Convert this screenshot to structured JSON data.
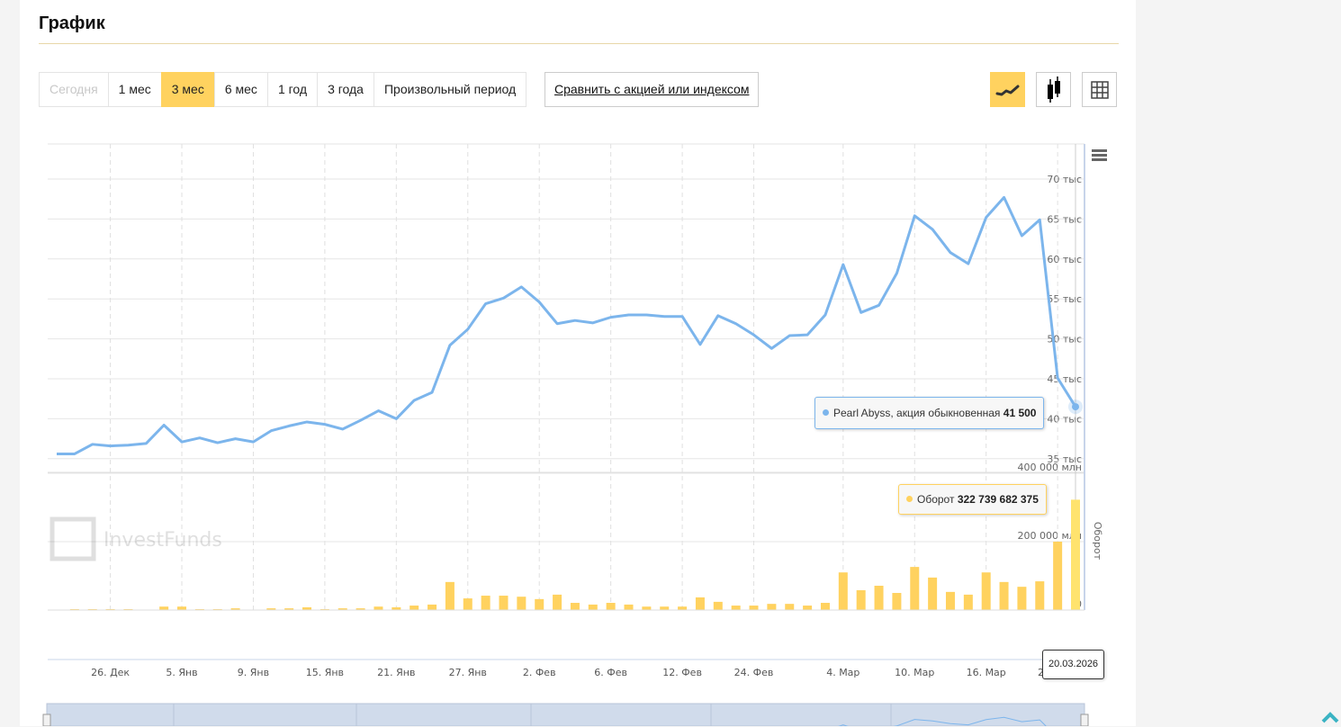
{
  "title": "График",
  "periods": [
    {
      "label": "Сегодня",
      "state": "disabled"
    },
    {
      "label": "1 мес",
      "state": ""
    },
    {
      "label": "3 мес",
      "state": "active"
    },
    {
      "label": "6 мес",
      "state": ""
    },
    {
      "label": "1 год",
      "state": ""
    },
    {
      "label": "3 года",
      "state": ""
    },
    {
      "label": "Произвольный период",
      "state": ""
    }
  ],
  "compare_label": "Сравнить с акцией или индексом",
  "view_buttons": [
    {
      "icon": "line-chart-icon",
      "active": true
    },
    {
      "icon": "candlestick-icon",
      "active": false
    },
    {
      "icon": "table-icon",
      "active": false
    }
  ],
  "colors": {
    "accent": "#ffd25f",
    "price_line": "#7cb5ec",
    "volume_bar": "#ffd25f",
    "navigator": "#d0dbeb"
  },
  "watermark": "InvestFunds",
  "tooltips": {
    "price": {
      "series": "Pearl Abyss, акция обыкновенная",
      "value": "41 500"
    },
    "volume": {
      "series": "Оборот",
      "value": "322 739 682 375"
    },
    "date": "20.03.2026"
  },
  "chart_data": {
    "type": "line",
    "price_axis": {
      "ticks": [
        "35 тыс",
        "40 тыс",
        "45 тыс",
        "50 тыс",
        "55 тыс",
        "60 тыс",
        "65 тыс",
        "70 тыс"
      ],
      "tick_values": [
        35000,
        40000,
        45000,
        50000,
        55000,
        60000,
        65000,
        70000
      ]
    },
    "volume_axis": {
      "label": "Оборот",
      "ticks": [
        "0",
        "200 000 млн",
        "400 000 млн"
      ],
      "tick_values": [
        0,
        200000000000,
        400000000000
      ]
    },
    "x_ticks": [
      "26. Дек",
      "5. Янв",
      "9. Янв",
      "15. Янв",
      "21. Янв",
      "27. Янв",
      "2. Фев",
      "6. Фев",
      "12. Фев",
      "24. Фев",
      "4. Мар",
      "10. Мар",
      "16. Мар",
      "20. Мар"
    ],
    "series": [
      {
        "name": "Pearl Abyss, акция обыкновенная",
        "type": "line",
        "values": [
          35600,
          35600,
          36800,
          36600,
          36700,
          36900,
          39200,
          37100,
          37600,
          37000,
          37500,
          37100,
          38500,
          39100,
          39600,
          39300,
          38700,
          39800,
          41000,
          40000,
          42300,
          43300,
          49200,
          51200,
          54400,
          55100,
          56500,
          54600,
          51900,
          52300,
          52000,
          52700,
          53000,
          53000,
          52800,
          52800,
          49300,
          52900,
          51900,
          50500,
          48800,
          50400,
          50500,
          53000,
          59300,
          53300,
          54200,
          58200,
          65400,
          63700,
          60800,
          59400,
          65200,
          67700,
          62900,
          64900,
          45100,
          41500
        ]
      },
      {
        "name": "Оборот",
        "type": "bar",
        "values": [
          0,
          2600000000,
          2600000000,
          2600000000,
          2600000000,
          0,
          10000000000,
          10000000000,
          2600000000,
          2600000000,
          5000000000,
          0,
          5000000000,
          5000000000,
          8000000000,
          2600000000,
          5000000000,
          5000000000,
          10000000000,
          8000000000,
          13000000000,
          16000000000,
          82000000000,
          34000000000,
          42000000000,
          42000000000,
          39000000000,
          32000000000,
          45000000000,
          21000000000,
          16000000000,
          21000000000,
          16000000000,
          10000000000,
          10000000000,
          10000000000,
          37000000000,
          24000000000,
          13000000000,
          13000000000,
          18000000000,
          18000000000,
          13000000000,
          21000000000,
          110000000000,
          58000000000,
          71000000000,
          50000000000,
          126000000000,
          95000000000,
          53000000000,
          45000000000,
          110000000000,
          82000000000,
          68000000000,
          84000000000,
          200000000000,
          322739682375
        ]
      }
    ]
  }
}
